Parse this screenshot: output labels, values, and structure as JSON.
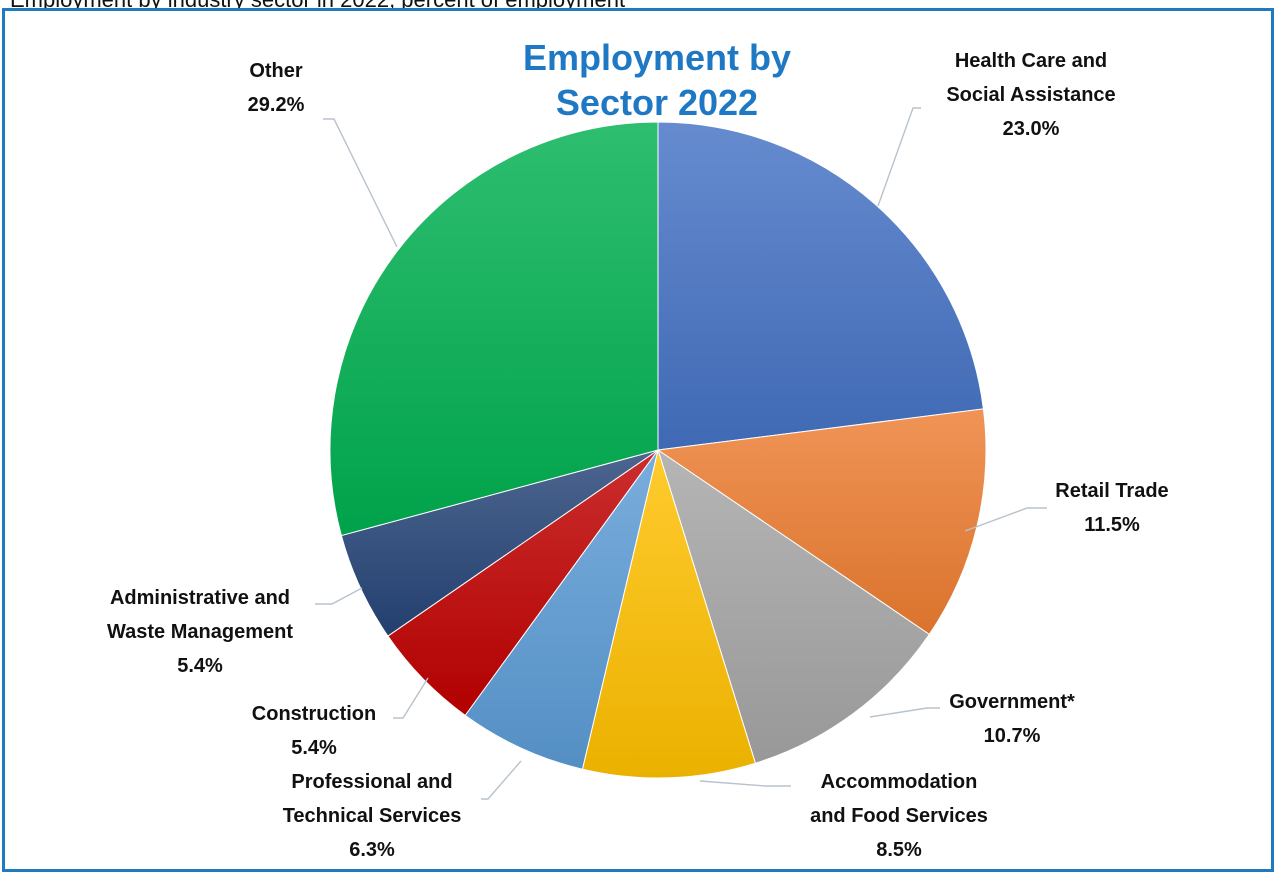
{
  "top_text": "Employment by industry sector in 2022, percent of employment",
  "chart_data": {
    "type": "pie",
    "title": [
      "Employment by",
      "Sector 2022"
    ],
    "start_angle_deg": 0,
    "direction": "clockwise",
    "slices": [
      {
        "name": [
          "Health Care and",
          "Social Assistance"
        ],
        "value": 23.0,
        "value_label": "23.0%",
        "color": "#4472c4"
      },
      {
        "name": [
          "Retail Trade"
        ],
        "value": 11.5,
        "value_label": "11.5%",
        "color": "#ed7d31"
      },
      {
        "name": [
          "Government*"
        ],
        "value": 10.7,
        "value_label": "10.7%",
        "color": "#a5a5a5"
      },
      {
        "name": [
          "Accommodation",
          "and Food Services"
        ],
        "value": 8.5,
        "value_label": "8.5%",
        "color": "#ffc000"
      },
      {
        "name": [
          "Professional and",
          "Technical Services"
        ],
        "value": 6.3,
        "value_label": "6.3%",
        "color": "#5b9bd5"
      },
      {
        "name": [
          "Construction"
        ],
        "value": 5.4,
        "value_label": "5.4%",
        "color": "#c00000"
      },
      {
        "name": [
          "Administrative and",
          "Waste Management"
        ],
        "value": 5.4,
        "value_label": "5.4%",
        "color": "#264478"
      },
      {
        "name": [
          "Other"
        ],
        "value": 29.2,
        "value_label": "29.2%",
        "color": "#00b050"
      }
    ]
  }
}
